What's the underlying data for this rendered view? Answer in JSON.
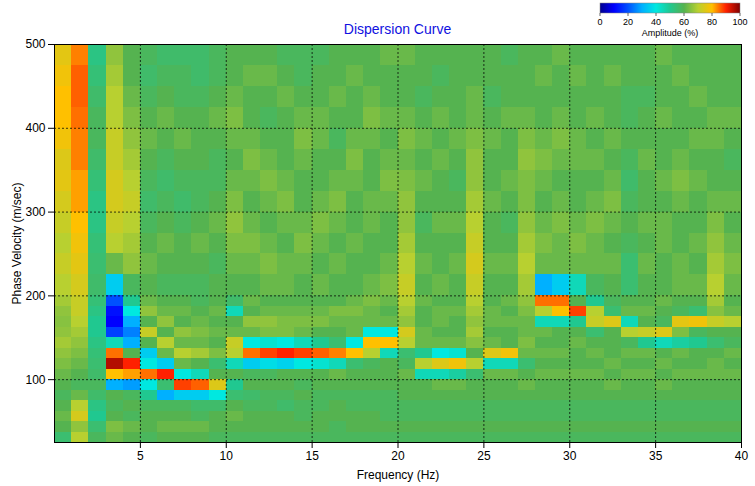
{
  "chart_data": {
    "type": "heatmap",
    "title": "Dispersion Curve",
    "xlabel": "Frequency (Hz)",
    "ylabel": "Phase Velocity (m/sec)",
    "xlim": [
      0,
      40
    ],
    "ylim": [
      25,
      500
    ],
    "xticks": [
      5,
      10,
      15,
      20,
      25,
      30,
      35,
      40
    ],
    "yticks": [
      100,
      200,
      300,
      400,
      500
    ],
    "grid": true,
    "frequency_edges": [
      0,
      1,
      2,
      3,
      4,
      5,
      6,
      7,
      8,
      9,
      10,
      11,
      12,
      13,
      14,
      15,
      16,
      17,
      18,
      19,
      20,
      21,
      22,
      23,
      24,
      25,
      26,
      27,
      28,
      29,
      30,
      31,
      32,
      33,
      34,
      35,
      36,
      37,
      38,
      39,
      40
    ],
    "velocity_edges": [
      25,
      37.5,
      50,
      62.5,
      75,
      87.5,
      100,
      112.5,
      125,
      137.5,
      150,
      162.5,
      175,
      187.5,
      200,
      225,
      250,
      275,
      300,
      325,
      350,
      375,
      400,
      425,
      450,
      475,
      500
    ],
    "amplitude": [
      [
        55,
        60,
        62,
        60,
        58,
        60,
        62,
        64,
        66,
        68,
        66,
        65,
        66,
        68,
        70,
        72,
        70,
        72,
        74,
        76,
        75,
        78,
        80,
        80,
        78,
        76
      ],
      [
        70,
        66,
        74,
        70,
        62,
        58,
        60,
        62,
        64,
        66,
        68,
        70,
        72,
        72,
        74,
        76,
        78,
        80,
        82,
        82,
        84,
        84,
        85,
        86,
        86,
        84
      ],
      [
        58,
        55,
        50,
        52,
        56,
        58,
        56,
        55,
        54,
        52,
        50,
        50,
        52,
        54,
        56,
        55,
        54,
        52,
        52,
        54,
        56,
        58,
        58,
        56,
        54,
        52
      ],
      [
        62,
        64,
        60,
        58,
        60,
        30,
        80,
        96,
        85,
        45,
        18,
        10,
        12,
        20,
        35,
        62,
        70,
        72,
        74,
        74,
        72,
        72,
        70,
        70,
        68,
        66
      ],
      [
        60,
        62,
        58,
        60,
        58,
        28,
        82,
        90,
        60,
        30,
        25,
        30,
        40,
        50,
        58,
        66,
        68,
        70,
        72,
        70,
        68,
        66,
        64,
        62,
        60,
        60
      ],
      [
        58,
        60,
        60,
        58,
        50,
        40,
        85,
        40,
        35,
        60,
        72,
        60,
        66,
        62,
        60,
        62,
        60,
        58,
        56,
        58,
        60,
        62,
        60,
        58,
        56,
        58
      ],
      [
        60,
        62,
        60,
        58,
        30,
        55,
        90,
        35,
        62,
        70,
        60,
        66,
        62,
        60,
        58,
        60,
        62,
        60,
        58,
        56,
        58,
        60,
        62,
        60,
        58,
        56
      ],
      [
        60,
        62,
        60,
        58,
        35,
        88,
        40,
        62,
        70,
        62,
        66,
        60,
        62,
        60,
        58,
        60,
        60,
        58,
        56,
        58,
        60,
        62,
        60,
        58,
        58,
        56
      ],
      [
        60,
        62,
        58,
        56,
        35,
        86,
        45,
        60,
        68,
        62,
        64,
        62,
        60,
        58,
        58,
        60,
        62,
        60,
        58,
        58,
        60,
        60,
        60,
        58,
        56,
        56
      ],
      [
        58,
        60,
        60,
        56,
        40,
        75,
        60,
        55,
        64,
        60,
        62,
        60,
        62,
        60,
        60,
        58,
        60,
        62,
        60,
        58,
        58,
        60,
        62,
        60,
        58,
        58
      ],
      [
        58,
        60,
        62,
        60,
        55,
        50,
        60,
        45,
        70,
        72,
        62,
        60,
        45,
        56,
        60,
        62,
        64,
        66,
        64,
        62,
        60,
        62,
        64,
        62,
        60,
        60
      ],
      [
        58,
        60,
        60,
        58,
        56,
        60,
        58,
        35,
        85,
        40,
        62,
        66,
        60,
        62,
        60,
        62,
        64,
        62,
        60,
        62,
        64,
        62,
        60,
        60,
        62,
        60
      ],
      [
        58,
        60,
        60,
        58,
        58,
        60,
        58,
        38,
        88,
        42,
        64,
        66,
        62,
        60,
        62,
        64,
        62,
        60,
        62,
        64,
        62,
        60,
        58,
        60,
        62,
        60
      ],
      [
        58,
        60,
        60,
        56,
        58,
        60,
        60,
        36,
        90,
        40,
        64,
        64,
        62,
        60,
        62,
        62,
        60,
        62,
        64,
        62,
        60,
        60,
        60,
        62,
        60,
        58
      ],
      [
        58,
        60,
        58,
        58,
        60,
        58,
        60,
        40,
        88,
        45,
        62,
        64,
        62,
        60,
        60,
        62,
        64,
        62,
        60,
        60,
        62,
        64,
        62,
        60,
        58,
        58
      ],
      [
        58,
        60,
        60,
        58,
        58,
        60,
        60,
        42,
        86,
        50,
        60,
        64,
        62,
        60,
        62,
        60,
        62,
        64,
        62,
        60,
        60,
        62,
        62,
        60,
        60,
        58
      ],
      [
        58,
        58,
        60,
        60,
        58,
        60,
        62,
        45,
        84,
        55,
        60,
        62,
        64,
        60,
        60,
        62,
        60,
        62,
        64,
        62,
        60,
        58,
        60,
        62,
        60,
        60
      ],
      [
        58,
        60,
        60,
        58,
        58,
        60,
        60,
        55,
        80,
        40,
        62,
        62,
        64,
        62,
        60,
        60,
        62,
        60,
        60,
        62,
        64,
        62,
        60,
        60,
        62,
        60
      ],
      [
        58,
        60,
        60,
        58,
        58,
        60,
        60,
        58,
        70,
        80,
        40,
        62,
        62,
        64,
        62,
        60,
        60,
        62,
        62,
        60,
        60,
        62,
        64,
        62,
        60,
        60
      ],
      [
        58,
        60,
        58,
        58,
        58,
        60,
        60,
        60,
        45,
        80,
        40,
        62,
        60,
        62,
        64,
        62,
        60,
        60,
        62,
        64,
        62,
        60,
        62,
        60,
        60,
        62
      ],
      [
        58,
        60,
        58,
        58,
        60,
        60,
        62,
        58,
        55,
        70,
        74,
        66,
        68,
        70,
        72,
        70,
        68,
        66,
        66,
        64,
        62,
        64,
        62,
        60,
        60,
        62
      ],
      [
        58,
        60,
        58,
        58,
        60,
        60,
        45,
        70,
        50,
        62,
        62,
        60,
        60,
        62,
        60,
        62,
        60,
        58,
        60,
        62,
        60,
        62,
        60,
        58,
        60,
        60
      ],
      [
        58,
        60,
        58,
        58,
        60,
        62,
        45,
        75,
        40,
        62,
        60,
        62,
        62,
        60,
        62,
        60,
        60,
        62,
        60,
        60,
        62,
        60,
        62,
        60,
        58,
        60
      ],
      [
        58,
        60,
        58,
        58,
        60,
        62,
        48,
        78,
        42,
        62,
        60,
        60,
        62,
        60,
        60,
        62,
        60,
        62,
        60,
        58,
        60,
        62,
        60,
        60,
        60,
        60
      ],
      [
        58,
        60,
        58,
        58,
        60,
        60,
        55,
        70,
        60,
        65,
        68,
        66,
        68,
        70,
        72,
        74,
        72,
        70,
        68,
        66,
        66,
        64,
        62,
        62,
        60,
        60
      ],
      [
        58,
        60,
        58,
        58,
        60,
        60,
        62,
        45,
        75,
        62,
        60,
        62,
        62,
        60,
        60,
        62,
        60,
        60,
        62,
        60,
        60,
        62,
        60,
        58,
        60,
        60
      ],
      [
        58,
        60,
        58,
        58,
        60,
        60,
        62,
        45,
        78,
        60,
        60,
        62,
        60,
        62,
        60,
        62,
        60,
        58,
        60,
        62,
        60,
        60,
        62,
        60,
        60,
        58
      ],
      [
        58,
        60,
        58,
        58,
        60,
        62,
        60,
        55,
        62,
        64,
        62,
        62,
        64,
        66,
        68,
        70,
        68,
        66,
        64,
        64,
        66,
        64,
        62,
        60,
        60,
        60
      ],
      [
        58,
        60,
        58,
        58,
        60,
        60,
        62,
        60,
        62,
        60,
        62,
        45,
        70,
        85,
        30,
        62,
        64,
        62,
        60,
        62,
        64,
        62,
        60,
        60,
        62,
        60
      ],
      [
        58,
        60,
        58,
        58,
        60,
        60,
        62,
        60,
        62,
        60,
        60,
        45,
        80,
        85,
        35,
        62,
        62,
        64,
        62,
        60,
        62,
        64,
        62,
        60,
        60,
        62
      ],
      [
        58,
        60,
        58,
        58,
        60,
        60,
        62,
        60,
        60,
        62,
        60,
        50,
        88,
        60,
        45,
        62,
        64,
        62,
        60,
        60,
        62,
        62,
        60,
        60,
        62,
        60
      ],
      [
        58,
        60,
        58,
        58,
        60,
        60,
        62,
        60,
        62,
        60,
        55,
        72,
        70,
        50,
        58,
        62,
        62,
        64,
        62,
        60,
        62,
        60,
        62,
        60,
        60,
        60
      ],
      [
        58,
        60,
        58,
        58,
        60,
        62,
        60,
        62,
        60,
        60,
        60,
        75,
        55,
        58,
        60,
        62,
        60,
        62,
        64,
        62,
        60,
        62,
        60,
        60,
        62,
        60
      ],
      [
        58,
        60,
        58,
        58,
        60,
        60,
        62,
        60,
        62,
        58,
        70,
        45,
        62,
        60,
        55,
        55,
        58,
        60,
        58,
        56,
        58,
        60,
        58,
        58,
        60,
        60
      ],
      [
        58,
        60,
        58,
        58,
        60,
        60,
        62,
        60,
        62,
        50,
        72,
        60,
        62,
        60,
        60,
        62,
        60,
        62,
        60,
        60,
        62,
        60,
        60,
        58,
        60,
        60
      ],
      [
        58,
        60,
        58,
        58,
        60,
        62,
        60,
        62,
        60,
        45,
        75,
        58,
        60,
        62,
        60,
        60,
        62,
        62,
        60,
        62,
        60,
        60,
        62,
        60,
        60,
        62
      ],
      [
        58,
        60,
        58,
        58,
        60,
        60,
        62,
        60,
        62,
        48,
        64,
        76,
        58,
        60,
        62,
        62,
        60,
        60,
        62,
        64,
        62,
        60,
        60,
        60,
        62,
        60
      ],
      [
        58,
        60,
        58,
        58,
        60,
        60,
        62,
        60,
        60,
        50,
        58,
        78,
        55,
        60,
        62,
        60,
        62,
        60,
        60,
        62,
        60,
        62,
        60,
        62,
        60,
        60
      ],
      [
        58,
        60,
        58,
        58,
        60,
        60,
        62,
        62,
        60,
        55,
        60,
        72,
        65,
        68,
        70,
        68,
        66,
        64,
        62,
        60,
        60,
        62,
        62,
        60,
        60,
        60
      ],
      [
        58,
        60,
        58,
        58,
        60,
        60,
        62,
        60,
        62,
        58,
        60,
        70,
        62,
        60,
        62,
        64,
        62,
        60,
        62,
        60,
        58,
        60,
        62,
        60,
        60,
        60
      ]
    ],
    "colorbar": {
      "lim": [
        0,
        100
      ],
      "ticks": [
        0,
        20,
        40,
        60,
        80,
        100
      ],
      "label": "Amplitude (%)"
    }
  }
}
